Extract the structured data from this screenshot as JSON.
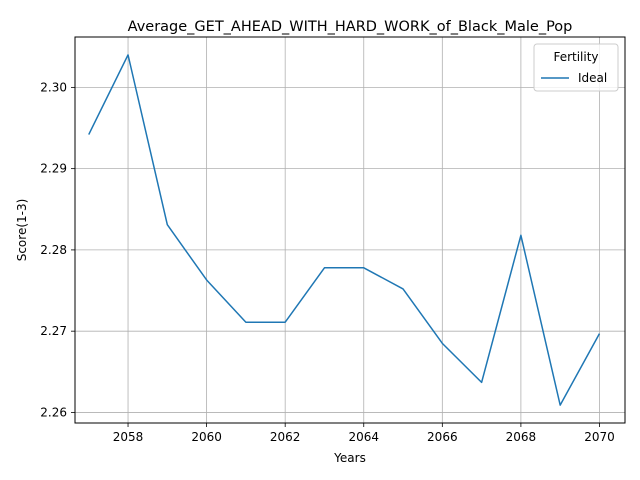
{
  "chart_data": {
    "type": "line",
    "title": "Average_GET_AHEAD_WITH_HARD_WORK_of_Black_Male_Pop",
    "xlabel": "Years",
    "ylabel": "Score(1-3)",
    "xlim": [
      2056.65,
      2070.65
    ],
    "ylim": [
      2.2587,
      2.3062
    ],
    "xticks": [
      2058,
      2060,
      2062,
      2064,
      2066,
      2068,
      2070
    ],
    "yticks": [
      2.26,
      2.27,
      2.28,
      2.29,
      2.3
    ],
    "ytick_labels": [
      "2.26",
      "2.27",
      "2.28",
      "2.29",
      "2.30"
    ],
    "grid": true,
    "legend": {
      "title": "Fertility",
      "placement": "top-right"
    },
    "series": [
      {
        "name": "Ideal",
        "color": "#1f77b4",
        "x": [
          2057,
          2058,
          2059,
          2060,
          2061,
          2062,
          2063,
          2064,
          2065,
          2066,
          2067,
          2068,
          2069,
          2070
        ],
        "y": [
          2.2942,
          2.304,
          2.2831,
          2.2763,
          2.2711,
          2.2711,
          2.2778,
          2.2778,
          2.2752,
          2.2685,
          2.2637,
          2.2818,
          2.2609,
          2.2697
        ]
      }
    ]
  }
}
